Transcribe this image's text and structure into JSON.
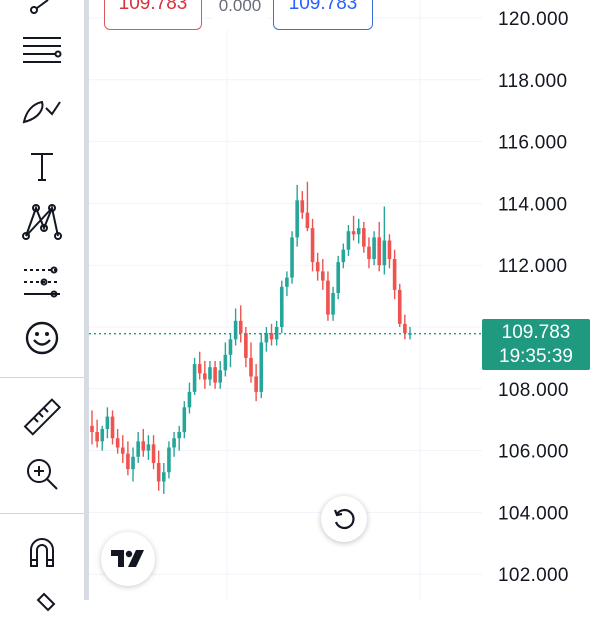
{
  "header": {
    "bid_price": "109.783",
    "spread": "0.000",
    "ask_price": "109.783"
  },
  "current_price": {
    "value": "109.783",
    "countdown": "19:35:39"
  },
  "price_axis": {
    "labels": [
      "120.000",
      "118.000",
      "116.000",
      "114.000",
      "112.000",
      "108.000",
      "106.000",
      "104.000",
      "102.000"
    ]
  },
  "toolbar": {
    "tools": [
      "crosshair-icon",
      "trend-lines-icon",
      "brush-icon",
      "text-icon",
      "pattern-icon",
      "prediction-icon",
      "emoji-icon",
      "ruler-icon",
      "zoom-in-icon",
      "magnet-icon",
      "lock-icon"
    ]
  },
  "colors": {
    "up": "#26a69a",
    "down": "#ef5350",
    "current_price": "#1f9a80",
    "bid": "#d8323d",
    "ask": "#2962ff"
  },
  "chart_data": {
    "type": "candlestick",
    "y_unit": "price",
    "ylim": [
      101.8,
      120.6
    ],
    "current_price": 109.783,
    "candles": [
      [
        106.8,
        107.3,
        106.2,
        106.6
      ],
      [
        106.6,
        107.0,
        106.1,
        106.3
      ],
      [
        106.3,
        106.8,
        106.0,
        106.7
      ],
      [
        106.7,
        107.4,
        106.4,
        107.1
      ],
      [
        107.1,
        107.3,
        106.2,
        106.4
      ],
      [
        106.4,
        106.7,
        105.9,
        106.1
      ],
      [
        106.1,
        106.5,
        105.6,
        105.9
      ],
      [
        105.9,
        106.3,
        105.2,
        105.4
      ],
      [
        105.4,
        106.1,
        105.0,
        105.8
      ],
      [
        105.8,
        106.6,
        105.6,
        106.3
      ],
      [
        106.3,
        106.7,
        105.8,
        106.0
      ],
      [
        106.0,
        106.5,
        105.7,
        106.2
      ],
      [
        106.2,
        106.5,
        105.4,
        105.6
      ],
      [
        105.6,
        106.0,
        104.7,
        105.0
      ],
      [
        105.0,
        105.6,
        104.6,
        105.3
      ],
      [
        105.3,
        106.3,
        105.1,
        106.1
      ],
      [
        106.1,
        106.6,
        105.8,
        106.4
      ],
      [
        106.4,
        106.8,
        106.0,
        106.6
      ],
      [
        106.6,
        107.6,
        106.4,
        107.4
      ],
      [
        107.4,
        108.2,
        107.2,
        107.9
      ],
      [
        107.9,
        109.0,
        107.8,
        108.8
      ],
      [
        108.8,
        109.2,
        108.3,
        108.5
      ],
      [
        108.5,
        108.9,
        108.0,
        108.3
      ],
      [
        108.3,
        108.9,
        108.1,
        108.7
      ],
      [
        108.7,
        108.9,
        108.0,
        108.2
      ],
      [
        108.2,
        108.9,
        108.0,
        108.6
      ],
      [
        108.6,
        109.5,
        108.4,
        109.1
      ],
      [
        109.1,
        109.8,
        108.7,
        109.6
      ],
      [
        109.6,
        110.6,
        109.4,
        110.2
      ],
      [
        110.2,
        110.7,
        109.5,
        109.8
      ],
      [
        109.8,
        110.0,
        108.7,
        109.0
      ],
      [
        109.0,
        109.5,
        108.2,
        108.4
      ],
      [
        108.4,
        108.8,
        107.6,
        107.9
      ],
      [
        107.9,
        109.8,
        107.7,
        109.5
      ],
      [
        109.5,
        110.0,
        109.2,
        109.8
      ],
      [
        109.8,
        110.1,
        109.4,
        109.6
      ],
      [
        109.6,
        110.2,
        109.4,
        110.0
      ],
      [
        110.0,
        111.5,
        109.8,
        111.3
      ],
      [
        111.3,
        111.8,
        111.0,
        111.6
      ],
      [
        111.6,
        113.1,
        111.4,
        112.9
      ],
      [
        112.9,
        114.6,
        112.6,
        114.1
      ],
      [
        114.1,
        114.4,
        113.5,
        113.7
      ],
      [
        113.7,
        114.7,
        113.1,
        113.2
      ],
      [
        113.2,
        113.5,
        111.8,
        112.1
      ],
      [
        112.1,
        112.4,
        111.5,
        111.8
      ],
      [
        111.8,
        112.2,
        111.2,
        111.5
      ],
      [
        111.5,
        111.8,
        110.2,
        110.4
      ],
      [
        110.4,
        111.3,
        110.2,
        111.1
      ],
      [
        111.1,
        112.3,
        110.9,
        112.1
      ],
      [
        112.1,
        112.7,
        111.9,
        112.5
      ],
      [
        112.5,
        113.3,
        112.3,
        113.1
      ],
      [
        113.1,
        113.6,
        112.8,
        113.0
      ],
      [
        113.0,
        113.5,
        112.7,
        113.2
      ],
      [
        113.2,
        113.4,
        112.4,
        112.6
      ],
      [
        112.6,
        112.9,
        111.9,
        112.2
      ],
      [
        112.2,
        113.1,
        112.0,
        112.9
      ],
      [
        112.9,
        113.4,
        111.8,
        112.0
      ],
      [
        112.0,
        113.9,
        111.7,
        112.8
      ],
      [
        112.8,
        113.0,
        111.9,
        112.2
      ],
      [
        112.2,
        112.5,
        110.9,
        111.2
      ],
      [
        111.2,
        111.4,
        110.0,
        110.1
      ],
      [
        110.1,
        110.4,
        109.6,
        109.8
      ],
      [
        109.8,
        110.0,
        109.6,
        109.8
      ]
    ]
  }
}
